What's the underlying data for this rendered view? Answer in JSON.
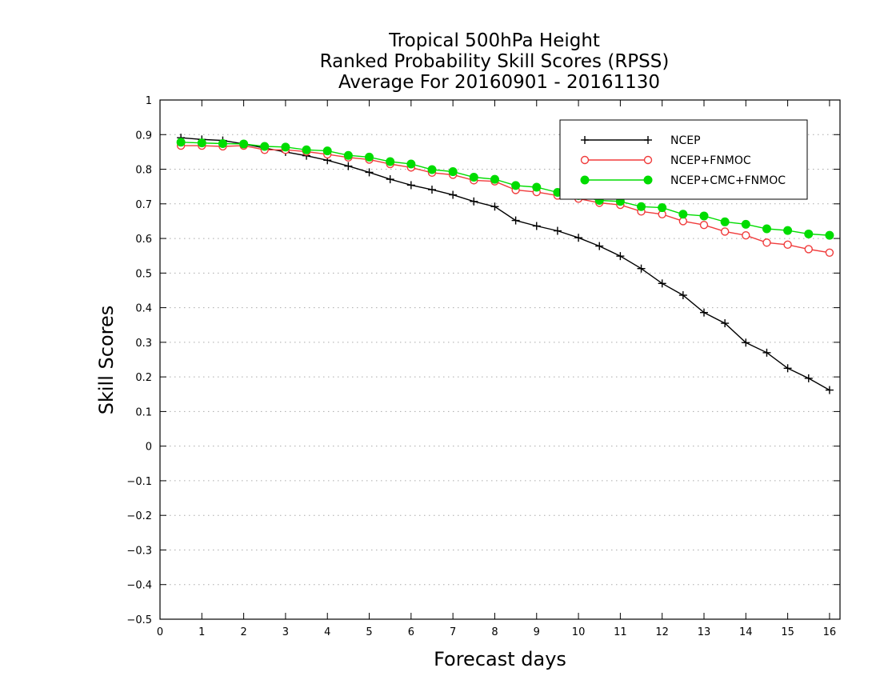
{
  "chart_data": {
    "type": "line",
    "title": [
      "Tropical 500hPa Height",
      "Ranked Probability Skill Scores (RPSS)",
      "Average For 20160901 - 20161130"
    ],
    "xlabel": "Forecast days",
    "ylabel": "Skill Scores",
    "xlim": [
      0,
      16.25
    ],
    "ylim": [
      -0.5,
      1
    ],
    "xticks": [
      0,
      1,
      2,
      3,
      4,
      5,
      6,
      7,
      8,
      9,
      10,
      11,
      12,
      13,
      14,
      15,
      16
    ],
    "yticks": [
      1,
      0.9,
      0.8,
      0.7,
      0.6,
      0.5,
      0.4,
      0.3,
      0.2,
      0.1,
      0,
      -0.1,
      -0.2,
      -0.3,
      -0.4,
      -0.5
    ],
    "xtick_labels": [
      "0",
      "1",
      "2",
      "3",
      "4",
      "5",
      "6",
      "7",
      "8",
      "9",
      "10",
      "11",
      "12",
      "13",
      "14",
      "15",
      "16"
    ],
    "ytick_labels": [
      "1",
      "0.9",
      "0.8",
      "0.7",
      "0.6",
      "0.5",
      "0.4",
      "0.3",
      "0.2",
      "0.1",
      "0",
      "−0.1",
      "−0.2",
      "−0.3",
      "−0.4",
      "−0.5"
    ],
    "grid": "horizontal dotted",
    "legend_position": "top-right",
    "x": [
      0.5,
      1.0,
      1.5,
      2.0,
      2.5,
      3.0,
      3.5,
      4.0,
      4.5,
      5.0,
      5.5,
      6.0,
      6.5,
      7.0,
      7.5,
      8.0,
      8.5,
      9.0,
      9.5,
      10.0,
      10.5,
      11.0,
      11.5,
      12.0,
      12.5,
      13.0,
      13.5,
      14.0,
      14.5,
      15.0,
      15.5,
      16.0
    ],
    "series": [
      {
        "name": "NCEP",
        "color": "#000000",
        "marker": "plus",
        "values": [
          0.891,
          0.886,
          0.883,
          0.873,
          0.861,
          0.85,
          0.839,
          0.826,
          0.809,
          0.791,
          0.771,
          0.754,
          0.741,
          0.726,
          0.707,
          0.692,
          0.652,
          0.636,
          0.622,
          0.602,
          0.578,
          0.549,
          0.513,
          0.47,
          0.436,
          0.386,
          0.355,
          0.299,
          0.27,
          0.225,
          0.196,
          0.162
        ]
      },
      {
        "name": "NCEP+FNMOC",
        "color": "#f03c3c",
        "marker": "open-circle",
        "values": [
          0.868,
          0.868,
          0.866,
          0.868,
          0.856,
          0.856,
          0.851,
          0.843,
          0.834,
          0.828,
          0.815,
          0.805,
          0.79,
          0.784,
          0.768,
          0.765,
          0.74,
          0.734,
          0.724,
          0.715,
          0.703,
          0.697,
          0.678,
          0.67,
          0.65,
          0.639,
          0.62,
          0.609,
          0.588,
          0.582,
          0.569,
          0.559
        ]
      },
      {
        "name": "NCEP+CMC+FNMOC",
        "color": "#00dc00",
        "marker": "filled-circle",
        "values": [
          0.878,
          0.876,
          0.874,
          0.873,
          0.866,
          0.864,
          0.856,
          0.853,
          0.84,
          0.835,
          0.822,
          0.815,
          0.799,
          0.793,
          0.777,
          0.771,
          0.753,
          0.748,
          0.733,
          0.724,
          0.71,
          0.707,
          0.692,
          0.689,
          0.67,
          0.665,
          0.648,
          0.641,
          0.628,
          0.623,
          0.613,
          0.609
        ]
      }
    ]
  }
}
